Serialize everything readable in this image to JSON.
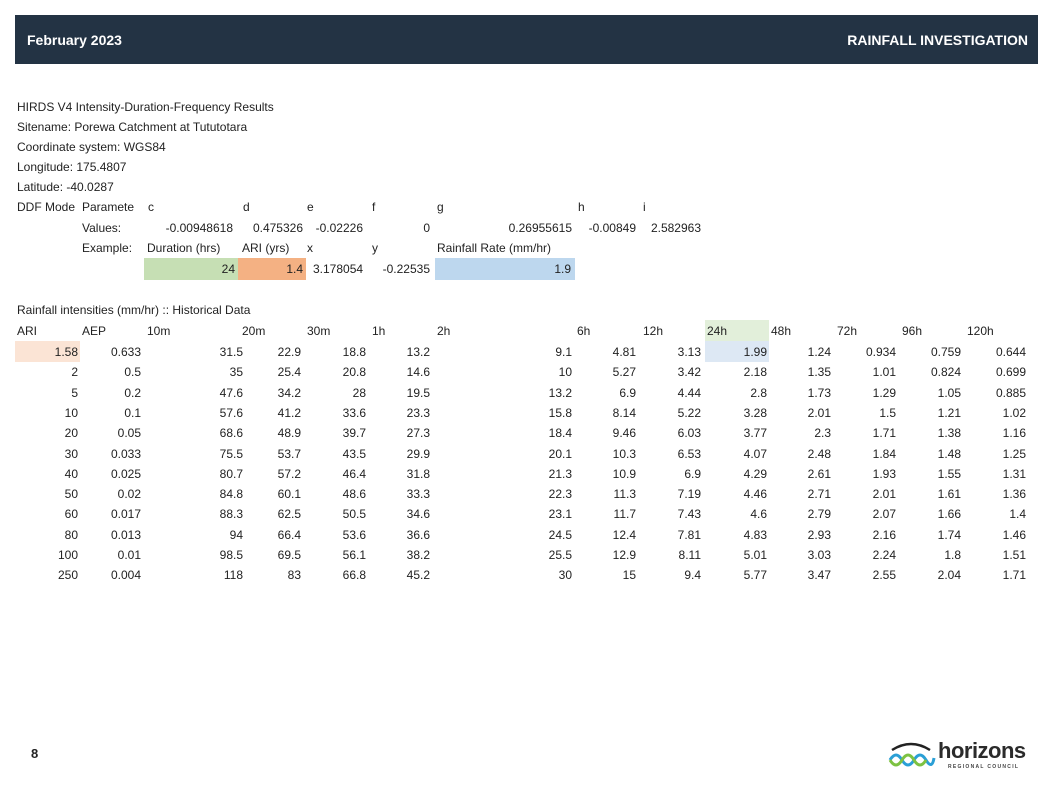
{
  "header": {
    "date": "February 2023",
    "title": "RAINFALL INVESTIGATION"
  },
  "info": {
    "lines": [
      "HIRDS V4 Intensity-Duration-Frequency Results",
      "Sitename: Porewa Catchment at Tututotara",
      "Coordinate system: WGS84",
      "Longitude: 175.4807",
      "Latitude: -40.0287"
    ],
    "param_row": [
      "DDF Mode",
      "Paramete",
      "c",
      "d",
      "e",
      "f",
      "g",
      "h",
      "i"
    ],
    "values_label": "Values:",
    "values": [
      "-0.00948618",
      "0.475326",
      "-0.02226",
      "0",
      "0.26955615",
      "-0.00849",
      "2.582963"
    ],
    "example_label": "Example:",
    "example_headers": [
      "Duration (hrs)",
      "ARI (yrs)",
      "x",
      "y",
      "Rainfall Rate (mm/hr)"
    ],
    "example_values": {
      "duration": "24",
      "ari": "1.4",
      "x": "3.178054",
      "y": "-0.22535",
      "rate": "1.9"
    }
  },
  "table": {
    "title": "Rainfall intensities (mm/hr) :: Historical Data",
    "headers": [
      "ARI",
      "AEP",
      "10m",
      "20m",
      "30m",
      "1h",
      "2h",
      "6h",
      "12h",
      "24h",
      "48h",
      "72h",
      "96h",
      "120h"
    ],
    "rows": [
      [
        "1.58",
        "0.633",
        "31.5",
        "22.9",
        "18.8",
        "13.2",
        "9.1",
        "4.81",
        "3.13",
        "1.99",
        "1.24",
        "0.934",
        "0.759",
        "0.644"
      ],
      [
        "2",
        "0.5",
        "35",
        "25.4",
        "20.8",
        "14.6",
        "10",
        "5.27",
        "3.42",
        "2.18",
        "1.35",
        "1.01",
        "0.824",
        "0.699"
      ],
      [
        "5",
        "0.2",
        "47.6",
        "34.2",
        "28",
        "19.5",
        "13.2",
        "6.9",
        "4.44",
        "2.8",
        "1.73",
        "1.29",
        "1.05",
        "0.885"
      ],
      [
        "10",
        "0.1",
        "57.6",
        "41.2",
        "33.6",
        "23.3",
        "15.8",
        "8.14",
        "5.22",
        "3.28",
        "2.01",
        "1.5",
        "1.21",
        "1.02"
      ],
      [
        "20",
        "0.05",
        "68.6",
        "48.9",
        "39.7",
        "27.3",
        "18.4",
        "9.46",
        "6.03",
        "3.77",
        "2.3",
        "1.71",
        "1.38",
        "1.16"
      ],
      [
        "30",
        "0.033",
        "75.5",
        "53.7",
        "43.5",
        "29.9",
        "20.1",
        "10.3",
        "6.53",
        "4.07",
        "2.48",
        "1.84",
        "1.48",
        "1.25"
      ],
      [
        "40",
        "0.025",
        "80.7",
        "57.2",
        "46.4",
        "31.8",
        "21.3",
        "10.9",
        "6.9",
        "4.29",
        "2.61",
        "1.93",
        "1.55",
        "1.31"
      ],
      [
        "50",
        "0.02",
        "84.8",
        "60.1",
        "48.6",
        "33.3",
        "22.3",
        "11.3",
        "7.19",
        "4.46",
        "2.71",
        "2.01",
        "1.61",
        "1.36"
      ],
      [
        "60",
        "0.017",
        "88.3",
        "62.5",
        "50.5",
        "34.6",
        "23.1",
        "11.7",
        "7.43",
        "4.6",
        "2.79",
        "2.07",
        "1.66",
        "1.4"
      ],
      [
        "80",
        "0.013",
        "94",
        "66.4",
        "53.6",
        "36.6",
        "24.5",
        "12.4",
        "7.81",
        "4.83",
        "2.93",
        "2.16",
        "1.74",
        "1.46"
      ],
      [
        "100",
        "0.01",
        "98.5",
        "69.5",
        "56.1",
        "38.2",
        "25.5",
        "12.9",
        "8.11",
        "5.01",
        "3.03",
        "2.24",
        "1.8",
        "1.51"
      ],
      [
        "250",
        "0.004",
        "118",
        "83",
        "66.8",
        "45.2",
        "30",
        "15",
        "9.4",
        "5.77",
        "3.47",
        "2.55",
        "2.04",
        "1.71"
      ]
    ]
  },
  "colors": {
    "green": "#c6dfb4",
    "orange": "#f4b183",
    "blue": "#bdd7ee",
    "pink": "#fbe4d5",
    "lightgreen": "#e2efda",
    "lightblue": "#dde8f4",
    "header_bg": "#233344"
  },
  "footer": {
    "page_number": "8",
    "logo_text": "horizons",
    "logo_sub": "REGIONAL COUNCIL"
  }
}
